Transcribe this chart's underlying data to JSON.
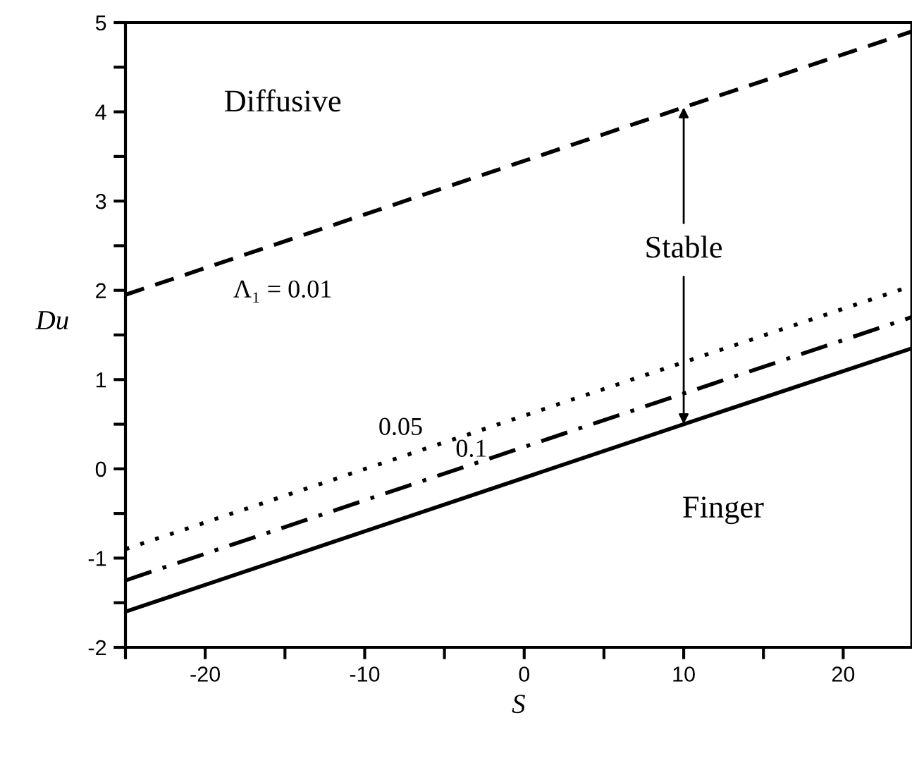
{
  "chart_data": {
    "type": "line",
    "xlabel": "S",
    "ylabel": "Du",
    "series": [
      {
        "color": "#000000",
        "line_style": "dashed",
        "x": [
          -25,
          10,
          24.3
        ],
        "values": [
          1.95,
          4.05,
          4.9
        ]
      },
      {
        "color": "#000000",
        "line_style": "dotted",
        "x": [
          -25,
          24.3
        ],
        "values": [
          -0.9,
          2.05
        ]
      },
      {
        "color": "#000000",
        "line_style": "dashdot",
        "x": [
          -25,
          24.3
        ],
        "values": [
          -1.25,
          1.7
        ]
      },
      {
        "color": "#000000",
        "line_style": "solid",
        "x": [
          -25,
          10,
          24.3
        ],
        "values": [
          -1.6,
          0.5,
          1.35
        ]
      }
    ],
    "annotations": [
      "Diffusive",
      {
        "text": "Stable",
        "x": 10,
        "y": 4.05
      },
      "Finger",
      "Λ₁ = 0.01",
      "0.05",
      "0.1"
    ],
    "xlim": [
      -25,
      24.3
    ],
    "xticks": [
      {
        "value": -25,
        "label": null
      },
      -20,
      {
        "value": -15,
        "label": null
      },
      -10,
      {
        "value": -5,
        "label": null
      },
      0,
      {
        "value": 5,
        "label": null
      },
      10,
      {
        "value": 15,
        "label": null
      },
      20
    ],
    "ylim": [
      -2,
      5
    ],
    "yticks": [
      -2,
      {
        "value": -1.5,
        "label": null
      },
      -1,
      {
        "value": -0.5,
        "label": null
      },
      0,
      {
        "value": 0.5,
        "label": null
      },
      1,
      {
        "value": 1.5,
        "label": null
      },
      2,
      {
        "value": 2.5,
        "label": null
      },
      3,
      {
        "value": 3.5,
        "label": null
      },
      4,
      {
        "value": 4.5,
        "label": null
      },
      5
    ],
    "grid": false
  }
}
